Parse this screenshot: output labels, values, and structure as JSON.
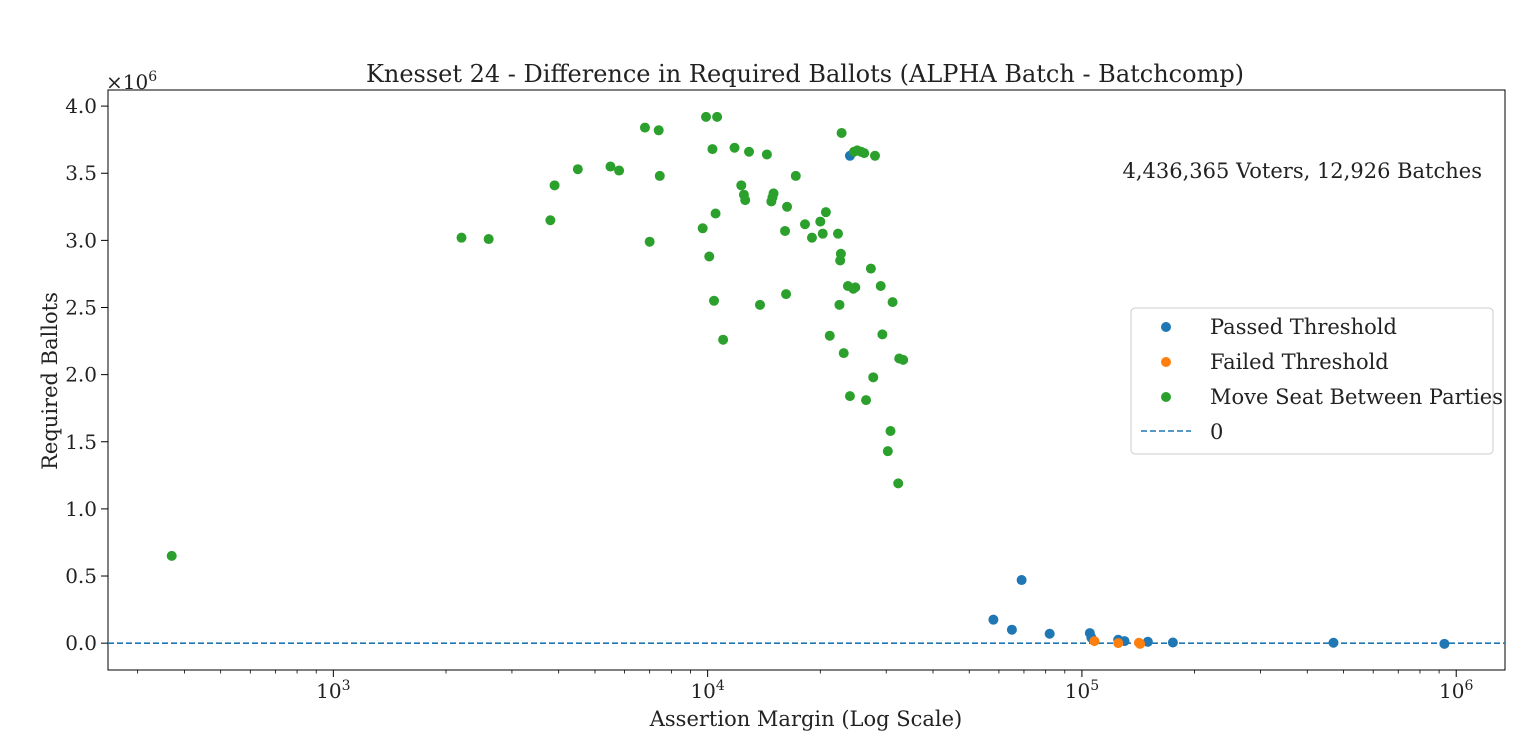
{
  "chart_data": {
    "type": "scatter",
    "title": "Knesset 24 - Difference in Required Ballots (ALPHA Batch - Batchcomp)",
    "xlabel": "Assertion Margin (Log Scale)",
    "ylabel": "Required Ballots",
    "x_scale": "log",
    "xlim": [
      250,
      1350000
    ],
    "ylim": [
      -200000,
      4120000
    ],
    "x_ticks": [
      {
        "value": 1000,
        "base": "10",
        "exp": "3"
      },
      {
        "value": 10000,
        "base": "10",
        "exp": "4"
      },
      {
        "value": 100000,
        "base": "10",
        "exp": "5"
      },
      {
        "value": 1000000,
        "base": "10",
        "exp": "6"
      }
    ],
    "y_ticks": [
      {
        "value": 0,
        "label": "0.0"
      },
      {
        "value": 500000,
        "label": "0.5"
      },
      {
        "value": 1000000,
        "label": "1.0"
      },
      {
        "value": 1500000,
        "label": "1.5"
      },
      {
        "value": 2000000,
        "label": "2.0"
      },
      {
        "value": 2500000,
        "label": "2.5"
      },
      {
        "value": 3000000,
        "label": "3.0"
      },
      {
        "value": 3500000,
        "label": "3.5"
      },
      {
        "value": 4000000,
        "label": "4.0"
      }
    ],
    "y_multiplier": {
      "base": "×10",
      "exp": "6"
    },
    "annotation": "4,436,365 Voters, 12,926 Batches",
    "legend_position": "right",
    "grid": false,
    "baseline": {
      "name": "0",
      "y": 0,
      "color": "#1f77b4",
      "style": "dashed"
    },
    "series": [
      {
        "name": "Passed Threshold",
        "color": "#1f77b4",
        "points": [
          [
            24000,
            3630000
          ],
          [
            58000,
            175000
          ],
          [
            65000,
            100000
          ],
          [
            69000,
            470000
          ],
          [
            82000,
            70000
          ],
          [
            105000,
            75000
          ],
          [
            106000,
            40000
          ],
          [
            125000,
            25000
          ],
          [
            130000,
            15000
          ],
          [
            150000,
            10000
          ],
          [
            175000,
            5000
          ],
          [
            470000,
            3000
          ],
          [
            930000,
            -5000
          ]
        ]
      },
      {
        "name": "Failed Threshold",
        "color": "#ff7f0e",
        "points": [
          [
            108000,
            15000
          ],
          [
            125000,
            0
          ],
          [
            142000,
            3000
          ],
          [
            143000,
            -5000
          ]
        ]
      },
      {
        "name": "Move Seat Between Parties",
        "color": "#2ca02c",
        "points": [
          [
            370,
            650000
          ],
          [
            2200,
            3020000
          ],
          [
            2600,
            3010000
          ],
          [
            3800,
            3150000
          ],
          [
            3900,
            3410000
          ],
          [
            4500,
            3530000
          ],
          [
            5500,
            3550000
          ],
          [
            5800,
            3520000
          ],
          [
            6800,
            3840000
          ],
          [
            7000,
            2990000
          ],
          [
            7400,
            3820000
          ],
          [
            7450,
            3480000
          ],
          [
            9700,
            3090000
          ],
          [
            9900,
            3920000
          ],
          [
            10100,
            2880000
          ],
          [
            10300,
            3680000
          ],
          [
            10400,
            2550000
          ],
          [
            10500,
            3200000
          ],
          [
            10600,
            3920000
          ],
          [
            11000,
            2260000
          ],
          [
            11800,
            3690000
          ],
          [
            12300,
            3410000
          ],
          [
            12500,
            3340000
          ],
          [
            12600,
            3300000
          ],
          [
            12900,
            3660000
          ],
          [
            13800,
            2520000
          ],
          [
            14400,
            3640000
          ],
          [
            14800,
            3290000
          ],
          [
            14900,
            3320000
          ],
          [
            15000,
            3350000
          ],
          [
            16100,
            3070000
          ],
          [
            16200,
            2600000
          ],
          [
            16300,
            3250000
          ],
          [
            17200,
            3480000
          ],
          [
            18200,
            3120000
          ],
          [
            19000,
            3020000
          ],
          [
            20000,
            3140000
          ],
          [
            20300,
            3050000
          ],
          [
            20700,
            3210000
          ],
          [
            21200,
            2290000
          ],
          [
            22300,
            3050000
          ],
          [
            22500,
            2520000
          ],
          [
            22600,
            2850000
          ],
          [
            22700,
            2900000
          ],
          [
            22800,
            3800000
          ],
          [
            23100,
            2160000
          ],
          [
            23700,
            2660000
          ],
          [
            24000,
            1840000
          ],
          [
            24500,
            2640000
          ],
          [
            24600,
            3660000
          ],
          [
            24800,
            2650000
          ],
          [
            25100,
            3670000
          ],
          [
            25700,
            3660000
          ],
          [
            26200,
            3650000
          ],
          [
            26500,
            1810000
          ],
          [
            27300,
            2790000
          ],
          [
            27700,
            1980000
          ],
          [
            28000,
            3630000
          ],
          [
            29000,
            2660000
          ],
          [
            29300,
            2300000
          ],
          [
            30300,
            1430000
          ],
          [
            30800,
            1580000
          ],
          [
            31200,
            2540000
          ],
          [
            32300,
            1190000
          ],
          [
            32500,
            2120000
          ],
          [
            33300,
            2110000
          ]
        ]
      }
    ]
  }
}
